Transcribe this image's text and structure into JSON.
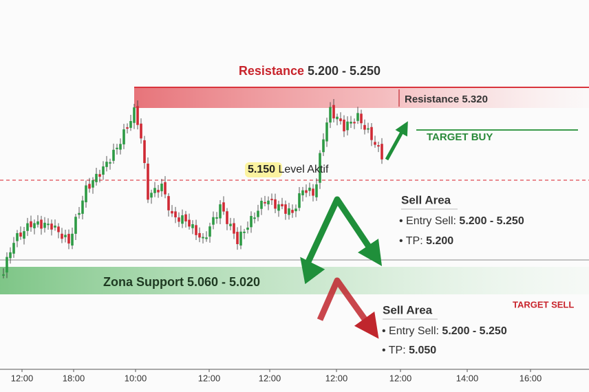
{
  "header": {
    "title_red": "Resistance",
    "title_range": "5.200 - 5.250"
  },
  "resistance_high": "Resistance 5.320",
  "target_buy": "TARGET BUY",
  "level": {
    "value": "5.150",
    "label": "Level Aktif"
  },
  "sell_area_1": {
    "title": "Sell Area",
    "entry_label": "• Entry Sell:",
    "entry_value": "5.200 - 5.250",
    "tp_label": "• TP:",
    "tp_value": "5.200"
  },
  "support_zone": "Zona Support 5.060 - 5.020",
  "target_sell": "TARGET SELL",
  "sell_area_2": {
    "title": "Sell Area",
    "entry_label": "• Entry Sell:",
    "entry_value": "5.200 - 5.250",
    "tp_label": "• TP:",
    "tp_value": "5.050"
  },
  "x_axis": {
    "labels": [
      "12:00",
      "18:00",
      "10:00",
      "12:00",
      "12:00",
      "12:00",
      "12:00",
      "14:00",
      "16:00"
    ]
  }
}
